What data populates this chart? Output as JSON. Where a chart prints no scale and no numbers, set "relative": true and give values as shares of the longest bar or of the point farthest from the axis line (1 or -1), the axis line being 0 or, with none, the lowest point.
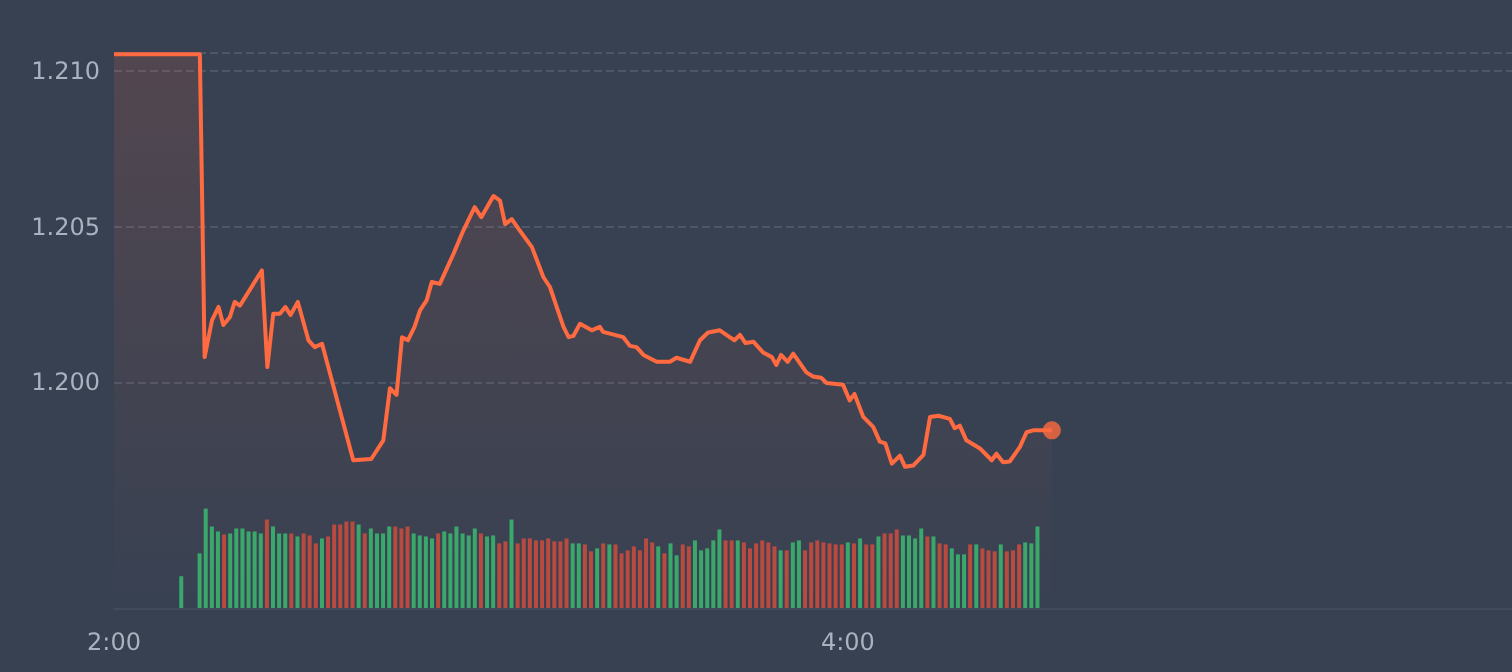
{
  "chart_data": [
    {
      "type": "area",
      "series": [
        {
          "color": "#ff6a40",
          "x": [
            2.0,
            2.234,
            2.247,
            2.267,
            2.285,
            2.298,
            2.316,
            2.329,
            2.343,
            2.403,
            2.418,
            2.434,
            2.452,
            2.467,
            2.481,
            2.501,
            2.53,
            2.547,
            2.567,
            2.652,
            2.701,
            2.734,
            2.752,
            2.77,
            2.785,
            2.801,
            2.819,
            2.834,
            2.852,
            2.866,
            2.888,
            2.925,
            2.952,
            2.983,
            3.001,
            3.034,
            3.052,
            3.066,
            3.084,
            3.106,
            3.139,
            3.17,
            3.188,
            3.225,
            3.239,
            3.252,
            3.27,
            3.302,
            3.324,
            3.333,
            3.388,
            3.406,
            3.424,
            3.443,
            3.479,
            3.515,
            3.533,
            3.57,
            3.597,
            3.619,
            3.651,
            3.678,
            3.691,
            3.706,
            3.721,
            3.743,
            3.769,
            3.793,
            3.805,
            3.818,
            3.836,
            3.851,
            3.887,
            3.905,
            3.927,
            3.942,
            3.987,
            4.005,
            4.018,
            4.042,
            4.069,
            4.087,
            4.102,
            4.12,
            4.142,
            4.156,
            4.178,
            4.206,
            4.224,
            4.247,
            4.278,
            4.291,
            4.305,
            4.323,
            4.36,
            4.392,
            4.405,
            4.423,
            4.441,
            4.469,
            4.487,
            4.505,
            4.556
          ],
          "values": [
            1.21053,
            1.21053,
            1.20081,
            1.20199,
            1.20242,
            1.20184,
            1.2021,
            1.20258,
            1.20246,
            1.20359,
            1.20049,
            1.2022,
            1.2022,
            1.20242,
            1.20216,
            1.20258,
            1.20135,
            1.20113,
            1.20124,
            1.1975,
            1.19754,
            1.19814,
            1.19981,
            1.1996,
            1.20145,
            1.20135,
            1.20178,
            1.20231,
            1.20263,
            1.20322,
            1.20316,
            1.20412,
            1.20487,
            1.20562,
            1.2053,
            1.20598,
            1.20583,
            1.20508,
            1.20524,
            1.20487,
            1.20434,
            1.20338,
            1.20306,
            1.20178,
            1.20145,
            1.20149,
            1.20188,
            1.20167,
            1.20178,
            1.20162,
            1.20145,
            1.20117,
            1.20113,
            1.20088,
            1.20066,
            1.20066,
            1.20079,
            1.20066,
            1.20135,
            1.2016,
            1.20167,
            1.20145,
            1.20135,
            1.20152,
            1.20126,
            1.2013,
            1.20096,
            1.20081,
            1.20056,
            1.20088,
            1.20066,
            1.20092,
            1.20032,
            1.20019,
            1.20015,
            1.19998,
            1.19992,
            1.19942,
            1.19963,
            1.19889,
            1.19857,
            1.1981,
            1.19804,
            1.19739,
            1.19765,
            1.19729,
            1.19733,
            1.19767,
            1.19889,
            1.19893,
            1.19883,
            1.19853,
            1.19861,
            1.19814,
            1.19788,
            1.1975,
            1.19771,
            1.19744,
            1.19746,
            1.19793,
            1.1984,
            1.19846,
            1.19846
          ]
        },
        {
          "type": "scatter",
          "marker": "circle",
          "color": "#ff6a40",
          "x": [
            4.556
          ],
          "values": [
            1.19846
          ]
        }
      ],
      "xlim": [
        2,
        5.81
      ],
      "ylim": [
        1.19276,
        1.2106
      ],
      "yticks": [
        {
          "value": 1.2,
          "label": "1.200"
        },
        1.205,
        {
          "value": 1.21,
          "label": "1.210"
        }
      ],
      "grid": "y",
      "marker": "none",
      "line_style": "solid",
      "tick_labels": "y"
    },
    {
      "type": "bar",
      "relative": true,
      "tick_labels": "x",
      "xlim": [
        2,
        5.81
      ],
      "xticks": [
        {
          "value": 2,
          "label": "2:00"
        },
        {
          "value": 4,
          "label": "4:00"
        }
      ],
      "x": [
        2.1833,
        2.2333,
        2.25,
        2.2667,
        2.2833,
        2.3,
        2.3167,
        2.3333,
        2.35,
        2.3667,
        2.3833,
        2.4,
        2.4167,
        2.4333,
        2.45,
        2.4667,
        2.4833,
        2.5,
        2.5167,
        2.5333,
        2.55,
        2.5667,
        2.5833,
        2.6,
        2.6167,
        2.6333,
        2.65,
        2.6667,
        2.6833,
        2.7,
        2.7167,
        2.7333,
        2.75,
        2.7667,
        2.7833,
        2.8,
        2.8167,
        2.8333,
        2.85,
        2.8667,
        2.8833,
        2.9,
        2.9167,
        2.9333,
        2.95,
        2.9667,
        2.9833,
        3,
        3.0167,
        3.0333,
        3.05,
        3.0667,
        3.0833,
        3.1,
        3.1167,
        3.1333,
        3.15,
        3.1667,
        3.1833,
        3.2,
        3.2167,
        3.2333,
        3.25,
        3.2667,
        3.2833,
        3.3,
        3.3167,
        3.3333,
        3.35,
        3.3667,
        3.3833,
        3.4,
        3.4167,
        3.4333,
        3.45,
        3.4667,
        3.4833,
        3.5,
        3.5167,
        3.5333,
        3.55,
        3.5667,
        3.5833,
        3.6,
        3.6167,
        3.6333,
        3.65,
        3.6667,
        3.6833,
        3.7,
        3.7167,
        3.7333,
        3.75,
        3.7667,
        3.7833,
        3.8,
        3.8167,
        3.8333,
        3.85,
        3.8667,
        3.8833,
        3.9,
        3.9167,
        3.9333,
        3.95,
        3.9667,
        3.9833,
        4,
        4.0167,
        4.0333,
        4.05,
        4.0667,
        4.0833,
        4.1,
        4.1167,
        4.1333,
        4.15,
        4.1667,
        4.1833,
        4.2,
        4.2167,
        4.2333,
        4.25,
        4.2667,
        4.2833,
        4.3,
        4.3167,
        4.3333,
        4.35,
        4.3667,
        4.3833,
        4.4,
        4.4167,
        4.4333,
        4.45,
        4.4667,
        4.4833,
        4.5,
        4.5167
      ],
      "values": [
        0.32,
        0.55,
        1,
        0.82,
        0.77,
        0.74,
        0.75,
        0.8,
        0.8,
        0.77,
        0.77,
        0.75,
        0.89,
        0.82,
        0.75,
        0.75,
        0.75,
        0.72,
        0.75,
        0.73,
        0.65,
        0.7,
        0.72,
        0.84,
        0.84,
        0.87,
        0.87,
        0.84,
        0.75,
        0.8,
        0.75,
        0.75,
        0.82,
        0.82,
        0.8,
        0.82,
        0.75,
        0.73,
        0.72,
        0.7,
        0.75,
        0.77,
        0.75,
        0.82,
        0.75,
        0.73,
        0.8,
        0.75,
        0.72,
        0.73,
        0.65,
        0.67,
        0.89,
        0.65,
        0.7,
        0.7,
        0.68,
        0.68,
        0.7,
        0.67,
        0.67,
        0.7,
        0.65,
        0.65,
        0.64,
        0.57,
        0.6,
        0.65,
        0.64,
        0.64,
        0.55,
        0.58,
        0.62,
        0.58,
        0.7,
        0.66,
        0.62,
        0.55,
        0.65,
        0.53,
        0.64,
        0.62,
        0.68,
        0.58,
        0.6,
        0.68,
        0.79,
        0.68,
        0.68,
        0.68,
        0.66,
        0.6,
        0.65,
        0.68,
        0.66,
        0.62,
        0.58,
        0.58,
        0.66,
        0.68,
        0.58,
        0.66,
        0.68,
        0.66,
        0.65,
        0.64,
        0.64,
        0.66,
        0.65,
        0.7,
        0.64,
        0.64,
        0.72,
        0.75,
        0.75,
        0.79,
        0.73,
        0.73,
        0.7,
        0.8,
        0.72,
        0.72,
        0.65,
        0.64,
        0.6,
        0.54,
        0.54,
        0.64,
        0.64,
        0.6,
        0.58,
        0.57,
        0.64,
        0.57,
        0.58,
        0.64,
        0.66,
        0.65,
        0.82
      ],
      "colors": [
        "#3aa86b",
        "#3aa86b",
        "#3aa86b",
        "#3aa86b",
        "#3aa86b",
        "#b84a40",
        "#3aa86b",
        "#3aa86b",
        "#3aa86b",
        "#3aa86b",
        "#3aa86b",
        "#3aa86b",
        "#b84a40",
        "#3aa86b",
        "#3aa86b",
        "#3aa86b",
        "#b84a40",
        "#3aa86b",
        "#b84a40",
        "#b84a40",
        "#b84a40",
        "#3aa86b",
        "#b84a40",
        "#b84a40",
        "#b84a40",
        "#b84a40",
        "#b84a40",
        "#3aa86b",
        "#b84a40",
        "#3aa86b",
        "#3aa86b",
        "#3aa86b",
        "#3aa86b",
        "#b84a40",
        "#b84a40",
        "#b84a40",
        "#3aa86b",
        "#3aa86b",
        "#3aa86b",
        "#3aa86b",
        "#b84a40",
        "#3aa86b",
        "#3aa86b",
        "#3aa86b",
        "#3aa86b",
        "#3aa86b",
        "#3aa86b",
        "#b84a40",
        "#3aa86b",
        "#3aa86b",
        "#b84a40",
        "#b84a40",
        "#3aa86b",
        "#b84a40",
        "#b84a40",
        "#b84a40",
        "#b84a40",
        "#b84a40",
        "#b84a40",
        "#b84a40",
        "#b84a40",
        "#b84a40",
        "#3aa86b",
        "#3aa86b",
        "#b84a40",
        "#b84a40",
        "#3aa86b",
        "#b84a40",
        "#3aa86b",
        "#b84a40",
        "#b84a40",
        "#b84a40",
        "#b84a40",
        "#b84a40",
        "#b84a40",
        "#b84a40",
        "#3aa86b",
        "#b84a40",
        "#3aa86b",
        "#3aa86b",
        "#b84a40",
        "#b84a40",
        "#3aa86b",
        "#3aa86b",
        "#3aa86b",
        "#3aa86b",
        "#3aa86b",
        "#b84a40",
        "#b84a40",
        "#3aa86b",
        "#b84a40",
        "#b84a40",
        "#b84a40",
        "#b84a40",
        "#b84a40",
        "#b84a40",
        "#3aa86b",
        "#b84a40",
        "#3aa86b",
        "#3aa86b",
        "#b84a40",
        "#b84a40",
        "#b84a40",
        "#b84a40",
        "#b84a40",
        "#b84a40",
        "#b84a40",
        "#3aa86b",
        "#b84a40",
        "#3aa86b",
        "#b84a40",
        "#b84a40",
        "#3aa86b",
        "#b84a40",
        "#b84a40",
        "#b84a40",
        "#3aa86b",
        "#3aa86b",
        "#3aa86b",
        "#3aa86b",
        "#b84a40",
        "#3aa86b",
        "#b84a40",
        "#b84a40",
        "#3aa86b",
        "#3aa86b",
        "#3aa86b",
        "#b84a40",
        "#3aa86b",
        "#b84a40",
        "#b84a40",
        "#b84a40",
        "#3aa86b",
        "#b84a40",
        "#b84a40",
        "#b84a40",
        "#3aa86b",
        "#3aa86b",
        "#3aa86b"
      ]
    }
  ]
}
